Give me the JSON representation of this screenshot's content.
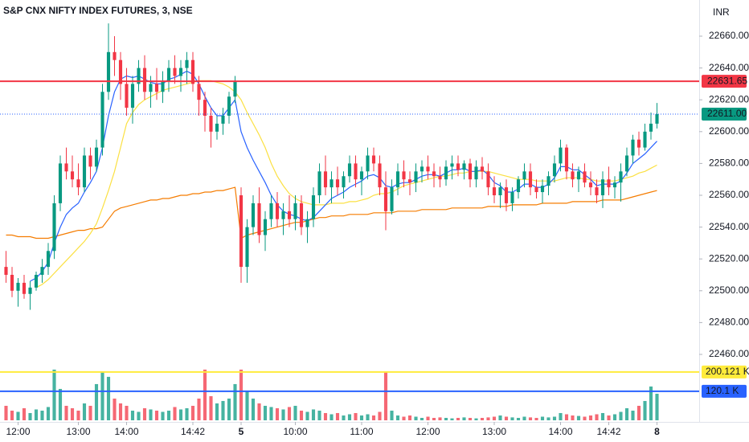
{
  "chart_data": {
    "type": "candlestick",
    "title": "S&P CNX NIFTY INDEX FUTURES, 3, NSE",
    "currency": "INR",
    "up_color": "#089981",
    "down_color": "#f23645",
    "xlim": [
      -1,
      115
    ],
    "xticks": [
      {
        "value": 2,
        "label": "12:00"
      },
      {
        "value": 12,
        "label": "13:00"
      },
      {
        "value": 20,
        "label": "14:00"
      },
      {
        "value": 31,
        "label": "14:42"
      },
      {
        "value": 39,
        "label": "5"
      },
      {
        "value": 48,
        "label": "10:00"
      },
      {
        "value": 59,
        "label": "11:00"
      },
      {
        "value": 70,
        "label": "12:00"
      },
      {
        "value": 81,
        "label": "13:00"
      },
      {
        "value": 92,
        "label": "14:00"
      },
      {
        "value": 100,
        "label": "14:42"
      },
      {
        "value": 108,
        "label": "8"
      }
    ],
    "ylim": [
      22455.45,
      22682.73
    ],
    "yticks": [
      {
        "value": 22460,
        "label": "22460.00"
      },
      {
        "value": 22480,
        "label": "22480.00"
      },
      {
        "value": 22500,
        "label": "22500.00"
      },
      {
        "value": 22520,
        "label": "22520.00"
      },
      {
        "value": 22540,
        "label": "22540.00"
      },
      {
        "value": 22560,
        "label": "22560.00"
      },
      {
        "value": 22580,
        "label": "22580.00"
      },
      {
        "value": 22600,
        "label": "22600.00"
      },
      {
        "value": 22620,
        "label": "22620.00"
      },
      {
        "value": 22640,
        "label": "22640.00"
      },
      {
        "value": 22660,
        "label": "22660.00"
      }
    ],
    "vlim": [
      0,
      243000
    ],
    "candles": [
      [
        22515,
        22525,
        22505,
        22510
      ],
      [
        22510,
        22515,
        22496,
        22500
      ],
      [
        22500,
        22508,
        22490,
        22505
      ],
      [
        22505,
        22510,
        22495,
        22498
      ],
      [
        22498,
        22506,
        22488,
        22502
      ],
      [
        22502,
        22512,
        22500,
        22510
      ],
      [
        22510,
        22520,
        22505,
        22515
      ],
      [
        22515,
        22530,
        22510,
        22525
      ],
      [
        22525,
        22560,
        22520,
        22555
      ],
      [
        22555,
        22585,
        22550,
        22580
      ],
      [
        22580,
        22590,
        22570,
        22575
      ],
      [
        22575,
        22585,
        22565,
        22570
      ],
      [
        22570,
        22580,
        22560,
        22565
      ],
      [
        22565,
        22590,
        22562,
        22585
      ],
      [
        22585,
        22590,
        22570,
        22578
      ],
      [
        22578,
        22595,
        22575,
        22590
      ],
      [
        22590,
        22630,
        22585,
        22625
      ],
      [
        22625,
        22668,
        22620,
        22650
      ],
      [
        22650,
        22660,
        22635,
        22645
      ],
      [
        22645,
        22650,
        22620,
        22630
      ],
      [
        22630,
        22640,
        22610,
        22615
      ],
      [
        22615,
        22635,
        22605,
        22630
      ],
      [
        22630,
        22645,
        22625,
        22640
      ],
      [
        22640,
        22648,
        22620,
        22625
      ],
      [
        22625,
        22635,
        22615,
        22630
      ],
      [
        22630,
        22640,
        22620,
        22625
      ],
      [
        22625,
        22638,
        22618,
        22632
      ],
      [
        22632,
        22645,
        22625,
        22640
      ],
      [
        22640,
        22648,
        22630,
        22635
      ],
      [
        22635,
        22645,
        22625,
        22640
      ],
      [
        22640,
        22650,
        22630,
        22645
      ],
      [
        22645,
        22650,
        22625,
        22630
      ],
      [
        22630,
        22635,
        22610,
        22620
      ],
      [
        22620,
        22625,
        22600,
        22610
      ],
      [
        22610,
        22615,
        22590,
        22600
      ],
      [
        22600,
        22610,
        22595,
        22605
      ],
      [
        22605,
        22615,
        22598,
        22610
      ],
      [
        22610,
        22625,
        22605,
        22622
      ],
      [
        22622,
        22635,
        22618,
        22632
      ],
      [
        22560,
        22565,
        22505,
        22515
      ],
      [
        22515,
        22545,
        22505,
        22540
      ],
      [
        22540,
        22560,
        22535,
        22555
      ],
      [
        22555,
        22565,
        22530,
        22535
      ],
      [
        22535,
        22550,
        22525,
        22545
      ],
      [
        22545,
        22560,
        22540,
        22555
      ],
      [
        22555,
        22562,
        22540,
        22545
      ],
      [
        22545,
        22555,
        22535,
        22550
      ],
      [
        22550,
        22560,
        22540,
        22545
      ],
      [
        22545,
        22560,
        22538,
        22555
      ],
      [
        22555,
        22560,
        22535,
        22540
      ],
      [
        22540,
        22550,
        22530,
        22545
      ],
      [
        22545,
        22565,
        22540,
        22560
      ],
      [
        22560,
        22580,
        22555,
        22575
      ],
      [
        22575,
        22585,
        22560,
        22565
      ],
      [
        22565,
        22575,
        22555,
        22570
      ],
      [
        22570,
        22578,
        22560,
        22565
      ],
      [
        22565,
        22575,
        22558,
        22572
      ],
      [
        22572,
        22585,
        22568,
        22580
      ],
      [
        22580,
        22585,
        22565,
        22570
      ],
      [
        22570,
        22578,
        22560,
        22575
      ],
      [
        22575,
        22590,
        22570,
        22585
      ],
      [
        22585,
        22590,
        22575,
        22580
      ],
      [
        22580,
        22585,
        22560,
        22565
      ],
      [
        22565,
        22575,
        22538,
        22550
      ],
      [
        22550,
        22570,
        22548,
        22565
      ],
      [
        22565,
        22580,
        22560,
        22575
      ],
      [
        22575,
        22582,
        22565,
        22570
      ],
      [
        22570,
        22575,
        22560,
        22568
      ],
      [
        22568,
        22580,
        22562,
        22575
      ],
      [
        22575,
        22582,
        22568,
        22578
      ],
      [
        22578,
        22585,
        22570,
        22575
      ],
      [
        22575,
        22580,
        22565,
        22572
      ],
      [
        22572,
        22578,
        22565,
        22570
      ],
      [
        22570,
        22582,
        22566,
        22578
      ],
      [
        22578,
        22585,
        22570,
        22580
      ],
      [
        22580,
        22585,
        22572,
        22576
      ],
      [
        22576,
        22582,
        22570,
        22580
      ],
      [
        22580,
        22583,
        22565,
        22570
      ],
      [
        22570,
        22582,
        22565,
        22578
      ],
      [
        22578,
        22584,
        22570,
        22575
      ],
      [
        22575,
        22580,
        22560,
        22565
      ],
      [
        22565,
        22572,
        22555,
        22560
      ],
      [
        22560,
        22568,
        22552,
        22565
      ],
      [
        22565,
        22570,
        22550,
        22555
      ],
      [
        22555,
        22565,
        22550,
        22562
      ],
      [
        22562,
        22572,
        22558,
        22570
      ],
      [
        22570,
        22580,
        22565,
        22575
      ],
      [
        22575,
        22580,
        22560,
        22565
      ],
      [
        22565,
        22570,
        22558,
        22562
      ],
      [
        22562,
        22570,
        22555,
        22566
      ],
      [
        22566,
        22575,
        22560,
        22572
      ],
      [
        22572,
        22585,
        22568,
        22580
      ],
      [
        22580,
        22595,
        22575,
        22590
      ],
      [
        22590,
        22592,
        22570,
        22575
      ],
      [
        22575,
        22580,
        22565,
        22570
      ],
      [
        22570,
        22578,
        22562,
        22575
      ],
      [
        22575,
        22580,
        22565,
        22568
      ],
      [
        22568,
        22575,
        22560,
        22565
      ],
      [
        22565,
        22570,
        22555,
        22560
      ],
      [
        22560,
        22575,
        22552,
        22570
      ],
      [
        22570,
        22578,
        22560,
        22565
      ],
      [
        22565,
        22572,
        22558,
        22568
      ],
      [
        22568,
        22580,
        22556,
        22575
      ],
      [
        22575,
        22590,
        22572,
        22585
      ],
      [
        22585,
        22598,
        22580,
        22595
      ],
      [
        22595,
        22600,
        22585,
        22590
      ],
      [
        22590,
        22605,
        22588,
        22600
      ],
      [
        22600,
        22612,
        22595,
        22605
      ],
      [
        22605,
        22618,
        22602,
        22611
      ]
    ],
    "volume": [
      60000,
      40000,
      35000,
      50000,
      30000,
      45000,
      40000,
      55000,
      210000,
      130000,
      60000,
      50000,
      40000,
      70000,
      60000,
      150000,
      200000,
      180000,
      90000,
      70000,
      60000,
      40000,
      35000,
      50000,
      45000,
      40000,
      35000,
      40000,
      55000,
      45000,
      50000,
      60000,
      90000,
      210000,
      100000,
      70000,
      80000,
      90000,
      150000,
      210000,
      120000,
      90000,
      70000,
      60000,
      55000,
      50000,
      45000,
      55000,
      60000,
      40000,
      35000,
      45000,
      40000,
      30000,
      25000,
      30000,
      20000,
      25000,
      30000,
      20000,
      25000,
      20000,
      35000,
      200000,
      40000,
      20000,
      15000,
      20000,
      15000,
      10000,
      15000,
      10000,
      12000,
      10000,
      8000,
      10000,
      12000,
      10000,
      8000,
      10000,
      12000,
      15000,
      20000,
      15000,
      12000,
      10000,
      15000,
      12000,
      10000,
      15000,
      12000,
      15000,
      30000,
      25000,
      20000,
      18000,
      15000,
      20000,
      25000,
      30000,
      20000,
      25000,
      35000,
      50000,
      40000,
      60000,
      80000,
      140000,
      110000
    ],
    "series": [
      {
        "color": "#f57c00",
        "values": [
          22535,
          22535,
          22534,
          22534,
          22534,
          22533,
          22533,
          22533,
          22534,
          22535,
          22536,
          22537,
          22538,
          22538,
          22539,
          22539,
          22540,
          22545,
          22550,
          22552,
          22553,
          22554,
          22555,
          22556,
          22557,
          22557,
          22558,
          22558,
          22559,
          22560,
          22560,
          22561,
          22561,
          22562,
          22562,
          22563,
          22563,
          22564,
          22565,
          22533,
          22535,
          22536,
          22537,
          22538,
          22539,
          22540,
          22541,
          22542,
          22543,
          22543,
          22544,
          22545,
          22546,
          22546,
          22547,
          22547,
          22547,
          22548,
          22548,
          22548,
          22548,
          22549,
          22549,
          22549,
          22549,
          22550,
          22550,
          22550,
          22550,
          22551,
          22551,
          22551,
          22551,
          22551,
          22552,
          22552,
          22552,
          22552,
          22552,
          22552,
          22553,
          22553,
          22553,
          22553,
          22554,
          22554,
          22554,
          22554,
          22554,
          22555,
          22555,
          22555,
          22555,
          22555,
          22556,
          22556,
          22556,
          22556,
          22556,
          22557,
          22557,
          22557,
          22557,
          22558,
          22559,
          22560,
          22561,
          22562,
          22563
        ]
      },
      {
        "color": "#fbe042",
        "values": [
          null,
          null,
          null,
          null,
          null,
          22502,
          22504,
          22507,
          22511,
          22515,
          22519,
          22523,
          22527,
          22531,
          22536,
          22542,
          22552,
          22563,
          22575,
          22590,
          22605,
          22612,
          22617,
          22620,
          22622,
          22624,
          22626,
          22627,
          22628,
          22629,
          22630,
          22631,
          22632,
          22632,
          22632,
          22631,
          22630,
          22628,
          22625,
          22620,
          22612,
          22605,
          22598,
          22590,
          22580,
          22572,
          22566,
          22561,
          22558,
          22556,
          22555,
          22554,
          22554,
          22554,
          22555,
          22555,
          22555,
          22556,
          22556,
          22557,
          22558,
          22560,
          22561,
          22561,
          22562,
          22564,
          22566,
          22567,
          22568,
          22569,
          22570,
          22571,
          22572,
          22572,
          22573,
          22574,
          22574,
          22575,
          22575,
          22575,
          22575,
          22574,
          22573,
          22572,
          22571,
          22570,
          22570,
          22570,
          22569,
          22569,
          22569,
          22569,
          22570,
          22571,
          22571,
          22571,
          22570,
          22570,
          22569,
          22569,
          22569,
          22569,
          22570,
          22571,
          22572,
          22574,
          22575,
          22577,
          22579
        ]
      },
      {
        "color": "#2962ff",
        "values": [
          null,
          null,
          null,
          null,
          22506,
          22508,
          22512,
          22518,
          22530,
          22540,
          22548,
          22552,
          22555,
          22562,
          22568,
          22575,
          22590,
          22610,
          22625,
          22633,
          22635,
          22634,
          22635,
          22633,
          22631,
          22630,
          22630,
          22633,
          22634,
          22636,
          22638,
          22636,
          22630,
          22622,
          22615,
          22610,
          22610,
          22615,
          22620,
          22600,
          22590,
          22582,
          22575,
          22568,
          22560,
          22554,
          22550,
          22548,
          22547,
          22545,
          22544,
          22546,
          22550,
          22554,
          22558,
          22560,
          22562,
          22565,
          22567,
          22569,
          22572,
          22573,
          22571,
          22566,
          22565,
          22567,
          22568,
          22568,
          22570,
          22572,
          22573,
          22573,
          22572,
          22574,
          22576,
          22576,
          22577,
          22575,
          22575,
          22576,
          22573,
          22568,
          22566,
          22562,
          22562,
          22564,
          22567,
          22567,
          22565,
          22565,
          22567,
          22571,
          22578,
          22578,
          22576,
          22576,
          22573,
          22570,
          22566,
          22567,
          22567,
          22567,
          22569,
          22574,
          22580,
          22583,
          22586,
          22590,
          22594
        ]
      }
    ],
    "price_lines": [
      {
        "value": 22631.65,
        "color": "#f23645",
        "style": "solid"
      },
      {
        "value": 22611,
        "label": "22611.00",
        "color": "#089981",
        "line_color": "#2962ff",
        "style": "dotted"
      }
    ],
    "volume_lines": [
      {
        "value": 200121,
        "label": "200.121 K",
        "color": "#ffeb3b"
      },
      {
        "value": 120100,
        "label": "120.1 K",
        "color": "#2962ff"
      }
    ]
  }
}
